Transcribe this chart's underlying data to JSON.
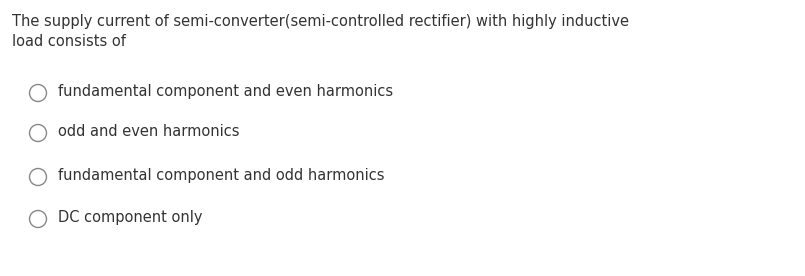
{
  "background_color": "#ffffff",
  "question_text": "The supply current of semi-converter(semi-controlled rectifier) with highly inductive\nload consists of",
  "question_color": "#333333",
  "options": [
    "fundamental component and even harmonics",
    "odd and even harmonics",
    "fundamental component and odd harmonics",
    "DC component only"
  ],
  "option_color": "#333333",
  "radio_color": "#888888",
  "question_fontsize": 10.5,
  "option_fontsize": 10.5,
  "figwidth": 8.05,
  "figheight": 2.76,
  "dpi": 100
}
